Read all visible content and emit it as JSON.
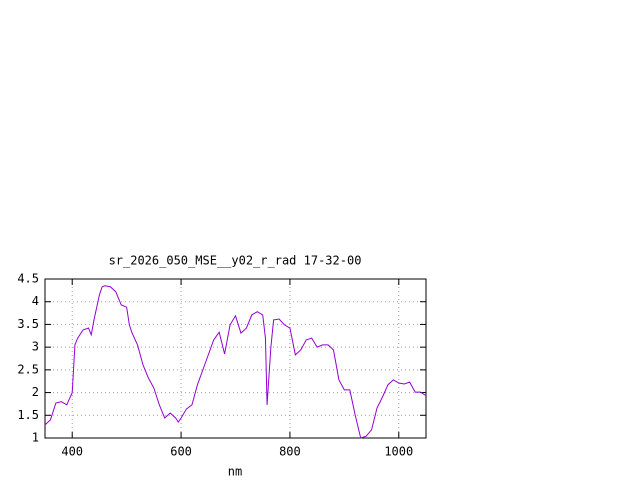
{
  "chart_data": {
    "type": "line",
    "title": "sr_2026_050_MSE__y02_r_rad 17-32-00",
    "x_label": "nm",
    "x": [
      350,
      360,
      370,
      380,
      390,
      400,
      405,
      410,
      420,
      430,
      435,
      440,
      450,
      455,
      460,
      470,
      480,
      490,
      500,
      505,
      510,
      520,
      530,
      540,
      550,
      560,
      570,
      580,
      590,
      595,
      600,
      610,
      620,
      630,
      640,
      650,
      660,
      670,
      680,
      690,
      700,
      710,
      720,
      730,
      740,
      750,
      755,
      758,
      765,
      770,
      780,
      790,
      800,
      810,
      820,
      830,
      840,
      850,
      860,
      870,
      880,
      890,
      900,
      910,
      920,
      930,
      940,
      950,
      960,
      970,
      980,
      990,
      1000,
      1010,
      1020,
      1030,
      1040,
      1050
    ],
    "series": [
      {
        "name": "sr_2026_050_MSE__y02_r_rad",
        "color": "#9400d3",
        "values": [
          1.29,
          1.4,
          1.77,
          1.8,
          1.73,
          2.0,
          3.05,
          3.2,
          3.38,
          3.42,
          3.27,
          3.6,
          4.15,
          4.33,
          4.35,
          4.33,
          4.22,
          3.93,
          3.88,
          3.49,
          3.31,
          3.05,
          2.61,
          2.32,
          2.1,
          1.73,
          1.44,
          1.55,
          1.44,
          1.35,
          1.44,
          1.64,
          1.73,
          2.17,
          2.5,
          2.83,
          3.16,
          3.33,
          2.85,
          3.49,
          3.69,
          3.31,
          3.42,
          3.71,
          3.78,
          3.71,
          3.2,
          1.73,
          3.0,
          3.6,
          3.62,
          3.49,
          3.42,
          2.83,
          2.94,
          3.16,
          3.2,
          3.0,
          3.05,
          3.05,
          2.94,
          2.28,
          2.06,
          2.06,
          1.5,
          1.0,
          1.04,
          1.18,
          1.66,
          1.9,
          2.17,
          2.28,
          2.21,
          2.19,
          2.23,
          2.01,
          2.01,
          1.93
        ]
      }
    ],
    "xlim": [
      350,
      1050
    ],
    "ylim": [
      1,
      4.5
    ],
    "xticks": [
      400,
      600,
      800,
      1000
    ],
    "yticks": [
      1,
      1.5,
      2,
      2.5,
      3,
      3.5,
      4,
      4.5
    ],
    "grid": true
  }
}
